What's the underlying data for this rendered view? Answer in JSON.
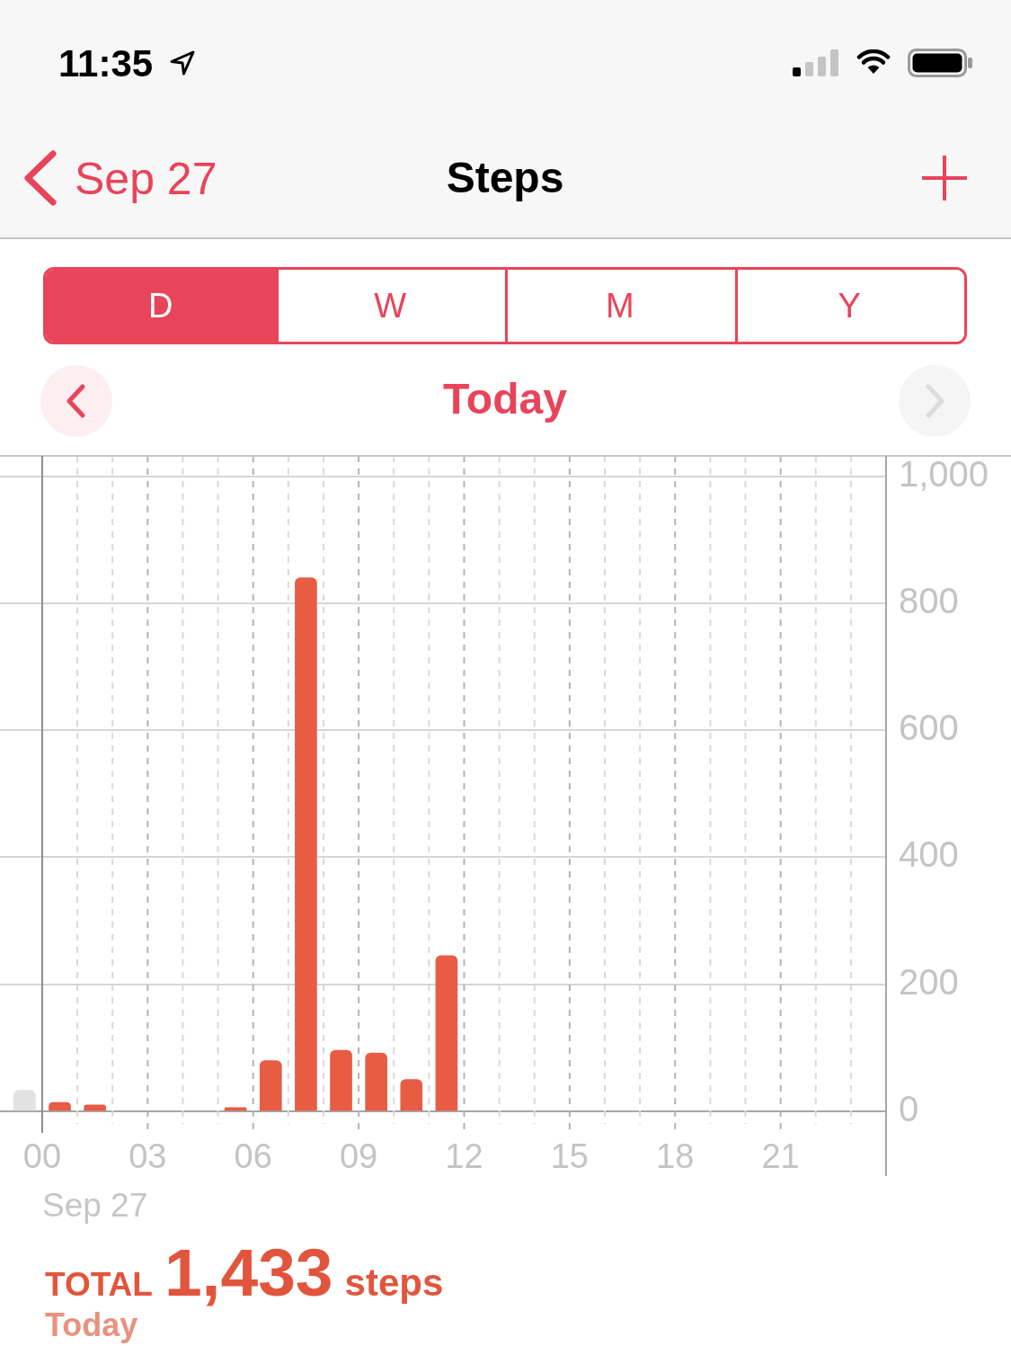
{
  "chart_data": {
    "type": "bar",
    "title": "Steps",
    "subtitle": "Today",
    "xlabel": "Sep 27",
    "annotations": [
      "11:35",
      "Sep 27",
      "D",
      "W",
      "M",
      "Y",
      "TOTAL",
      "1,433",
      "steps",
      "Today"
    ],
    "series": [
      {
        "color": "#e95c44",
        "x": [
          0.5,
          1.5,
          5.5,
          6.5,
          7.5,
          8.5,
          9.5,
          10.5,
          11.5
        ],
        "values": [
          14,
          10,
          6,
          80,
          840,
          96,
          92,
          50,
          245
        ]
      },
      {
        "color": "#e2e2e2",
        "x": [
          -0.5
        ],
        "values": [
          33
        ]
      }
    ],
    "xlim": [
      -1.2,
      24
    ],
    "xticks": [
      {
        "value": 0,
        "label": "00"
      },
      {
        "value": 1,
        "label": null
      },
      {
        "value": 2,
        "label": null
      },
      {
        "value": 3,
        "label": "03"
      },
      {
        "value": 4,
        "label": null
      },
      {
        "value": 5,
        "label": null
      },
      {
        "value": 6,
        "label": "06"
      },
      {
        "value": 7,
        "label": null
      },
      {
        "value": 8,
        "label": null
      },
      {
        "value": 9,
        "label": "09"
      },
      {
        "value": 10,
        "label": null
      },
      {
        "value": 11,
        "label": null
      },
      {
        "value": 12,
        "label": "12"
      },
      {
        "value": 13,
        "label": null
      },
      {
        "value": 14,
        "label": null
      },
      {
        "value": 15,
        "label": "15"
      },
      {
        "value": 16,
        "label": null
      },
      {
        "value": 17,
        "label": null
      },
      {
        "value": 18,
        "label": "18"
      },
      {
        "value": 19,
        "label": null
      },
      {
        "value": 20,
        "label": null
      },
      {
        "value": 21,
        "label": "21"
      },
      {
        "value": 22,
        "label": null
      },
      {
        "value": 23,
        "label": null
      }
    ],
    "ylim": [
      0,
      1032
    ],
    "yticks": [
      0,
      200,
      400,
      600,
      800,
      {
        "value": 1000,
        "label": "1,000"
      }
    ],
    "grid": true,
    "ref_lines": [
      {
        "axis": "x",
        "value": 0,
        "color": "#8e8e8e"
      }
    ]
  }
}
